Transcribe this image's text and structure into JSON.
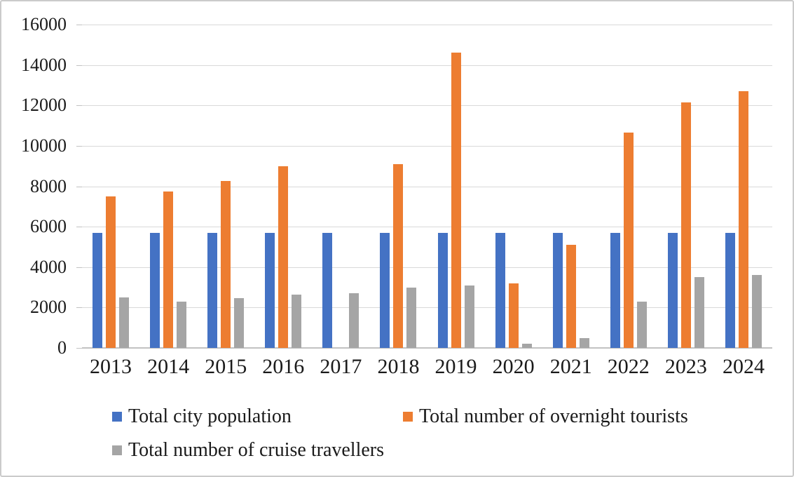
{
  "figure": {
    "background": "#ffffff",
    "border_color": "#cbcbcb"
  },
  "chart_data": {
    "type": "bar",
    "title": "",
    "xlabel": "",
    "ylabel": "",
    "categories": [
      "2013",
      "2014",
      "2015",
      "2016",
      "2017",
      "2018",
      "2019",
      "2020",
      "2021",
      "2022",
      "2023",
      "2024"
    ],
    "series": [
      {
        "name": "Total city population",
        "color": "#4472C4",
        "values": [
          5700,
          5700,
          5700,
          5700,
          5700,
          5700,
          5700,
          5700,
          5700,
          5700,
          5700,
          5700
        ]
      },
      {
        "name": "Total number of overnight tourists",
        "color": "#ED7D31",
        "values": [
          7500,
          7750,
          8250,
          9000,
          null,
          9100,
          14600,
          3200,
          5100,
          10650,
          12150,
          12700
        ]
      },
      {
        "name": "Total number of cruise travellers",
        "color": "#A5A5A5",
        "values": [
          2500,
          2300,
          2450,
          2650,
          2700,
          3000,
          3100,
          200,
          500,
          2300,
          3500,
          3600
        ]
      }
    ],
    "ylim": [
      0,
      16000
    ],
    "yticks": [
      0,
      2000,
      4000,
      6000,
      8000,
      10000,
      12000,
      14000,
      16000
    ],
    "grid": true,
    "gridline_color": "#D9D9D9",
    "axis_line_color": "#C2C2C2",
    "text_color": "#1A1A1A",
    "legend_position": "bottom-left"
  }
}
